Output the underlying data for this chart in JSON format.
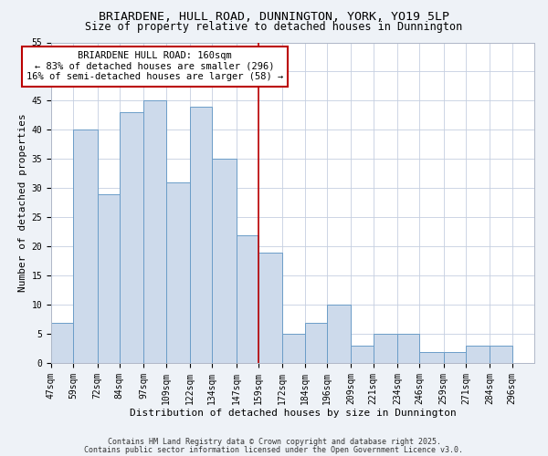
{
  "title": "BRIARDENE, HULL ROAD, DUNNINGTON, YORK, YO19 5LP",
  "subtitle": "Size of property relative to detached houses in Dunnington",
  "xlabel": "Distribution of detached houses by size in Dunnington",
  "ylabel": "Number of detached properties",
  "bin_labels": [
    "47sqm",
    "59sqm",
    "72sqm",
    "84sqm",
    "97sqm",
    "109sqm",
    "122sqm",
    "134sqm",
    "147sqm",
    "159sqm",
    "172sqm",
    "184sqm",
    "196sqm",
    "209sqm",
    "221sqm",
    "234sqm",
    "246sqm",
    "259sqm",
    "271sqm",
    "284sqm",
    "296sqm"
  ],
  "bin_edges": [
    47,
    59,
    72,
    84,
    97,
    109,
    122,
    134,
    147,
    159,
    172,
    184,
    196,
    209,
    221,
    234,
    246,
    259,
    271,
    284,
    296,
    308
  ],
  "bar_values": [
    7,
    40,
    29,
    43,
    45,
    31,
    44,
    35,
    22,
    19,
    5,
    7,
    10,
    3,
    5,
    5,
    2,
    2,
    3,
    3,
    0
  ],
  "bar_color": "#cddaeb",
  "bar_edge_color": "#6b9dc8",
  "vline_x": 159,
  "vline_color": "#bb0000",
  "annotation_text": "BRIARDENE HULL ROAD: 160sqm\n← 83% of detached houses are smaller (296)\n16% of semi-detached houses are larger (58) →",
  "annotation_box_color": "#ffffff",
  "annotation_box_edge": "#bb0000",
  "ylim": [
    0,
    55
  ],
  "yticks": [
    0,
    5,
    10,
    15,
    20,
    25,
    30,
    35,
    40,
    45,
    50,
    55
  ],
  "footnote1": "Contains HM Land Registry data © Crown copyright and database right 2025.",
  "footnote2": "Contains public sector information licensed under the Open Government Licence v3.0.",
  "bg_color": "#eef2f7",
  "plot_bg_color": "#ffffff",
  "grid_color": "#c5cfe0",
  "title_fontsize": 9.5,
  "subtitle_fontsize": 8.5,
  "axis_label_fontsize": 8,
  "tick_fontsize": 7,
  "annotation_fontsize": 7.5,
  "footnote_fontsize": 6
}
